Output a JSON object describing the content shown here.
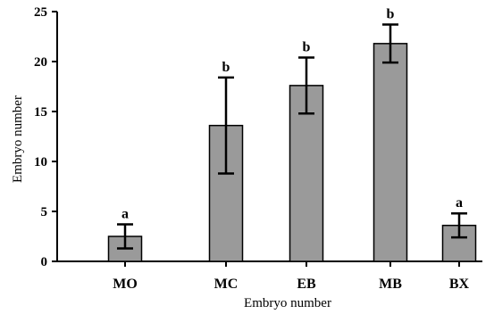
{
  "chart_data": {
    "type": "bar",
    "title": "",
    "xlabel": "Embryo number",
    "ylabel": "Embryo number",
    "categories": [
      "MO",
      "MC",
      "EB",
      "MB",
      "BX"
    ],
    "values": [
      2.5,
      13.6,
      17.6,
      21.8,
      3.6
    ],
    "error": [
      1.2,
      4.8,
      2.8,
      1.9,
      1.2
    ],
    "significance": [
      "a",
      "b",
      "b",
      "b",
      "a"
    ],
    "ylim": [
      0,
      25
    ],
    "yticks": [
      0,
      5,
      10,
      15,
      20,
      25
    ],
    "grid": false,
    "bar_color": "#9a9a9a"
  }
}
